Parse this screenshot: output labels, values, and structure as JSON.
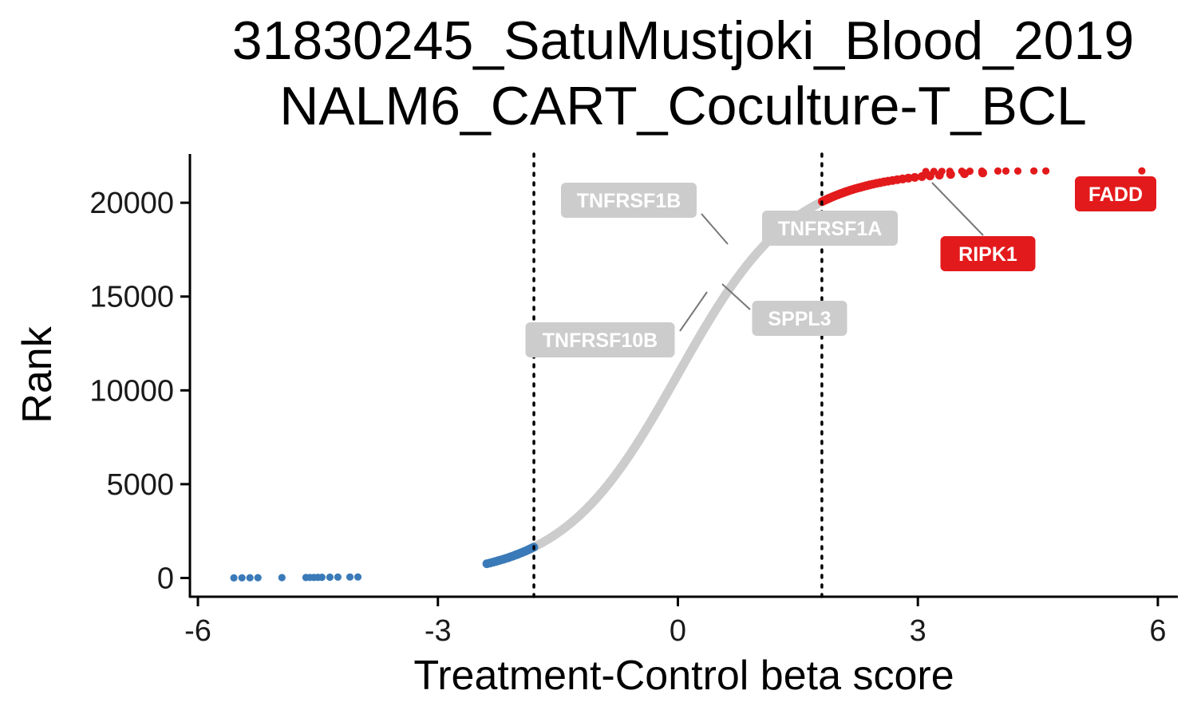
{
  "chart_data": {
    "type": "scatter",
    "title": [
      "31830245_SatuMustjoki_Blood_2019",
      "NALM6_CART_Coculture-T_BCL"
    ],
    "xlabel": "Treatment-Control beta score",
    "ylabel": "Rank",
    "xlim": [
      -6.1,
      6.25
    ],
    "ylim": [
      -1000,
      22600
    ],
    "x_ticks": [
      -6,
      -3,
      0,
      3,
      6
    ],
    "x_tick_labels": [
      "-6",
      "-3",
      "0",
      "3",
      "6"
    ],
    "y_ticks": [
      0,
      5000,
      10000,
      15000,
      20000
    ],
    "y_tick_labels": [
      "0",
      "5000",
      "10000",
      "15000",
      "20000"
    ],
    "thresholds": [
      -1.8,
      1.8
    ],
    "grid": false,
    "legend": "none",
    "colors": {
      "low": "#3a7ab8",
      "mid": "#cccccc",
      "high": "#e31a1c"
    },
    "n_genes": 21700,
    "curve_scale": 0.72,
    "series": [
      {
        "group": "low",
        "points": [
          [
            -5.55,
            5
          ],
          [
            -5.45,
            8
          ],
          [
            -5.35,
            12
          ],
          [
            -5.25,
            15
          ],
          [
            -4.95,
            20
          ],
          [
            -4.65,
            25
          ],
          [
            -4.6,
            28
          ],
          [
            -4.55,
            30
          ],
          [
            -4.5,
            33
          ],
          [
            -4.45,
            36
          ],
          [
            -4.35,
            40
          ],
          [
            -4.25,
            45
          ],
          [
            -4.1,
            50
          ],
          [
            -4.0,
            55
          ]
        ]
      },
      {
        "group": "high",
        "points": [
          [
            3.1,
            21665
          ],
          [
            3.2,
            21670
          ],
          [
            3.3,
            21673
          ],
          [
            3.4,
            21676
          ],
          [
            3.55,
            21680
          ],
          [
            3.65,
            21683
          ],
          [
            3.8,
            21686
          ],
          [
            4.0,
            21688
          ],
          [
            4.1,
            21690
          ],
          [
            4.25,
            21692
          ],
          [
            4.45,
            21694
          ],
          [
            4.6,
            21696
          ],
          [
            5.8,
            21699
          ]
        ]
      }
    ],
    "highlighted_genes": [
      {
        "gene": "TNFRSF1B",
        "x": 0.68,
        "rank": 17700,
        "group": "mid"
      },
      {
        "gene": "TNFRSF1A",
        "x": 0.85,
        "rank": 18700,
        "group": "mid"
      },
      {
        "gene": "SPPL3",
        "x": 0.55,
        "rank": 16500,
        "group": "mid"
      },
      {
        "gene": "TNFRSF10B",
        "x": 0.32,
        "rank": 15000,
        "group": "mid"
      },
      {
        "gene": "RIPK1",
        "x": 3.05,
        "rank": 21660,
        "group": "high"
      },
      {
        "gene": "FADD",
        "x": 5.8,
        "rank": 21699,
        "group": "high"
      }
    ]
  }
}
